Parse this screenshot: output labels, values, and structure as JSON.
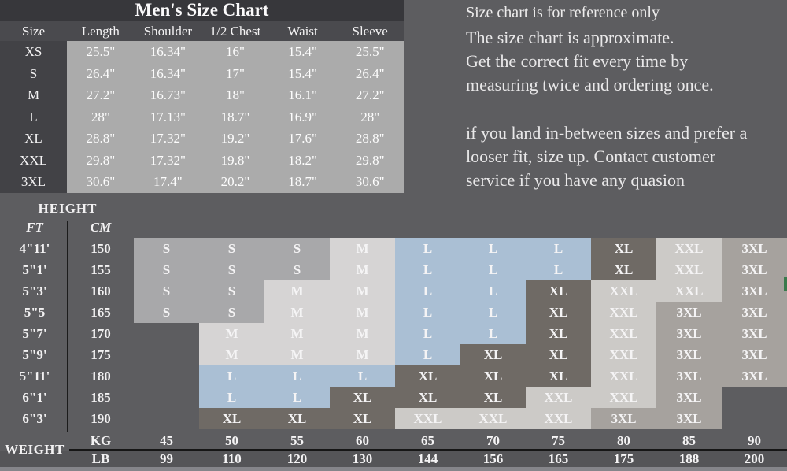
{
  "title": "Men's Size Chart",
  "notes": {
    "line1": "Size chart is for reference only",
    "para1": [
      "The size chart is approximate.",
      "Get the correct fit every time by",
      "measuring twice and ordering once."
    ],
    "para2": [
      "if you land in-between sizes and prefer a",
      "looser fit, size up. Contact customer",
      "service if you have any quasion"
    ]
  },
  "cell_colors": {
    "S": "#a8a8aa",
    "M": "#d6d4d4",
    "L": "#aabfd4",
    "XL": "#6f6a65",
    "XXL": "#cccac7",
    "3XL": "#a6a29e"
  },
  "chart_data": [
    {
      "type": "table",
      "title": "Men's Size Chart",
      "columns": [
        "Size",
        "Length",
        "Shoulder",
        "1/2 Chest",
        "Waist",
        "Sleeve"
      ],
      "rows": [
        [
          "XS",
          "25.5\"",
          "16.34\"",
          "16\"",
          "15.4\"",
          "25.5\""
        ],
        [
          "S",
          "26.4\"",
          "16.34\"",
          "17\"",
          "15.4\"",
          "26.4\""
        ],
        [
          "M",
          "27.2\"",
          "16.73\"",
          "18\"",
          "16.1\"",
          "27.2\""
        ],
        [
          "L",
          "28\"",
          "17.13\"",
          "18.7\"",
          "16.9\"",
          "28\""
        ],
        [
          "XL",
          "28.8\"",
          "17.32\"",
          "19.2\"",
          "17.6\"",
          "28.8\""
        ],
        [
          "XXL",
          "29.8\"",
          "17.32\"",
          "19.8\"",
          "18.2\"",
          "29.8\""
        ],
        [
          "3XL",
          "30.6\"",
          "17.4\"",
          "20.2\"",
          "18.7\"",
          "30.6\""
        ]
      ]
    },
    {
      "type": "table",
      "name": "height-weight-size-matrix",
      "labels": {
        "height": "HEIGHT",
        "weight": "WEIGHT",
        "ft": "FT",
        "cm": "CM",
        "kg": "KG",
        "lb": "LB"
      },
      "height_ft": [
        "4\"11'",
        "5\"1'",
        "5\"3'",
        "5\"5",
        "5\"7'",
        "5\"9'",
        "5\"11'",
        "6\"1'",
        "6\"3'"
      ],
      "height_cm": [
        "150",
        "155",
        "160",
        "165",
        "170",
        "175",
        "180",
        "185",
        "190"
      ],
      "weight_kg": [
        "45",
        "50",
        "55",
        "60",
        "65",
        "70",
        "75",
        "80",
        "85",
        "90"
      ],
      "weight_lb": [
        "99",
        "110",
        "120",
        "130",
        "144",
        "156",
        "165",
        "175",
        "188",
        "200"
      ],
      "cells": [
        [
          "S",
          "S",
          "S",
          "M",
          "L",
          "L",
          "L",
          "XL",
          "XXL",
          "3XL"
        ],
        [
          "S",
          "S",
          "S",
          "M",
          "L",
          "L",
          "L",
          "XL",
          "XXL",
          "3XL"
        ],
        [
          "S",
          "S",
          "M",
          "M",
          "L",
          "L",
          "XL",
          "XXL",
          "XXL",
          "3XL"
        ],
        [
          "S",
          "S",
          "M",
          "M",
          "L",
          "L",
          "XL",
          "XXL",
          "3XL",
          "3XL"
        ],
        [
          "",
          "M",
          "M",
          "M",
          "L",
          "L",
          "XL",
          "XXL",
          "3XL",
          "3XL"
        ],
        [
          "",
          "M",
          "M",
          "M",
          "L",
          "XL",
          "XL",
          "XXL",
          "3XL",
          "3XL"
        ],
        [
          "",
          "L",
          "L",
          "L",
          "XL",
          "XL",
          "XL",
          "XXL",
          "3XL",
          "3XL"
        ],
        [
          "",
          "L",
          "L",
          "XL",
          "XL",
          "XL",
          "XXL",
          "XXL",
          "3XL",
          ""
        ],
        [
          "",
          "XL",
          "XL",
          "XL",
          "XXL",
          "XXL",
          "XXL",
          "3XL",
          "3XL",
          ""
        ]
      ]
    }
  ]
}
